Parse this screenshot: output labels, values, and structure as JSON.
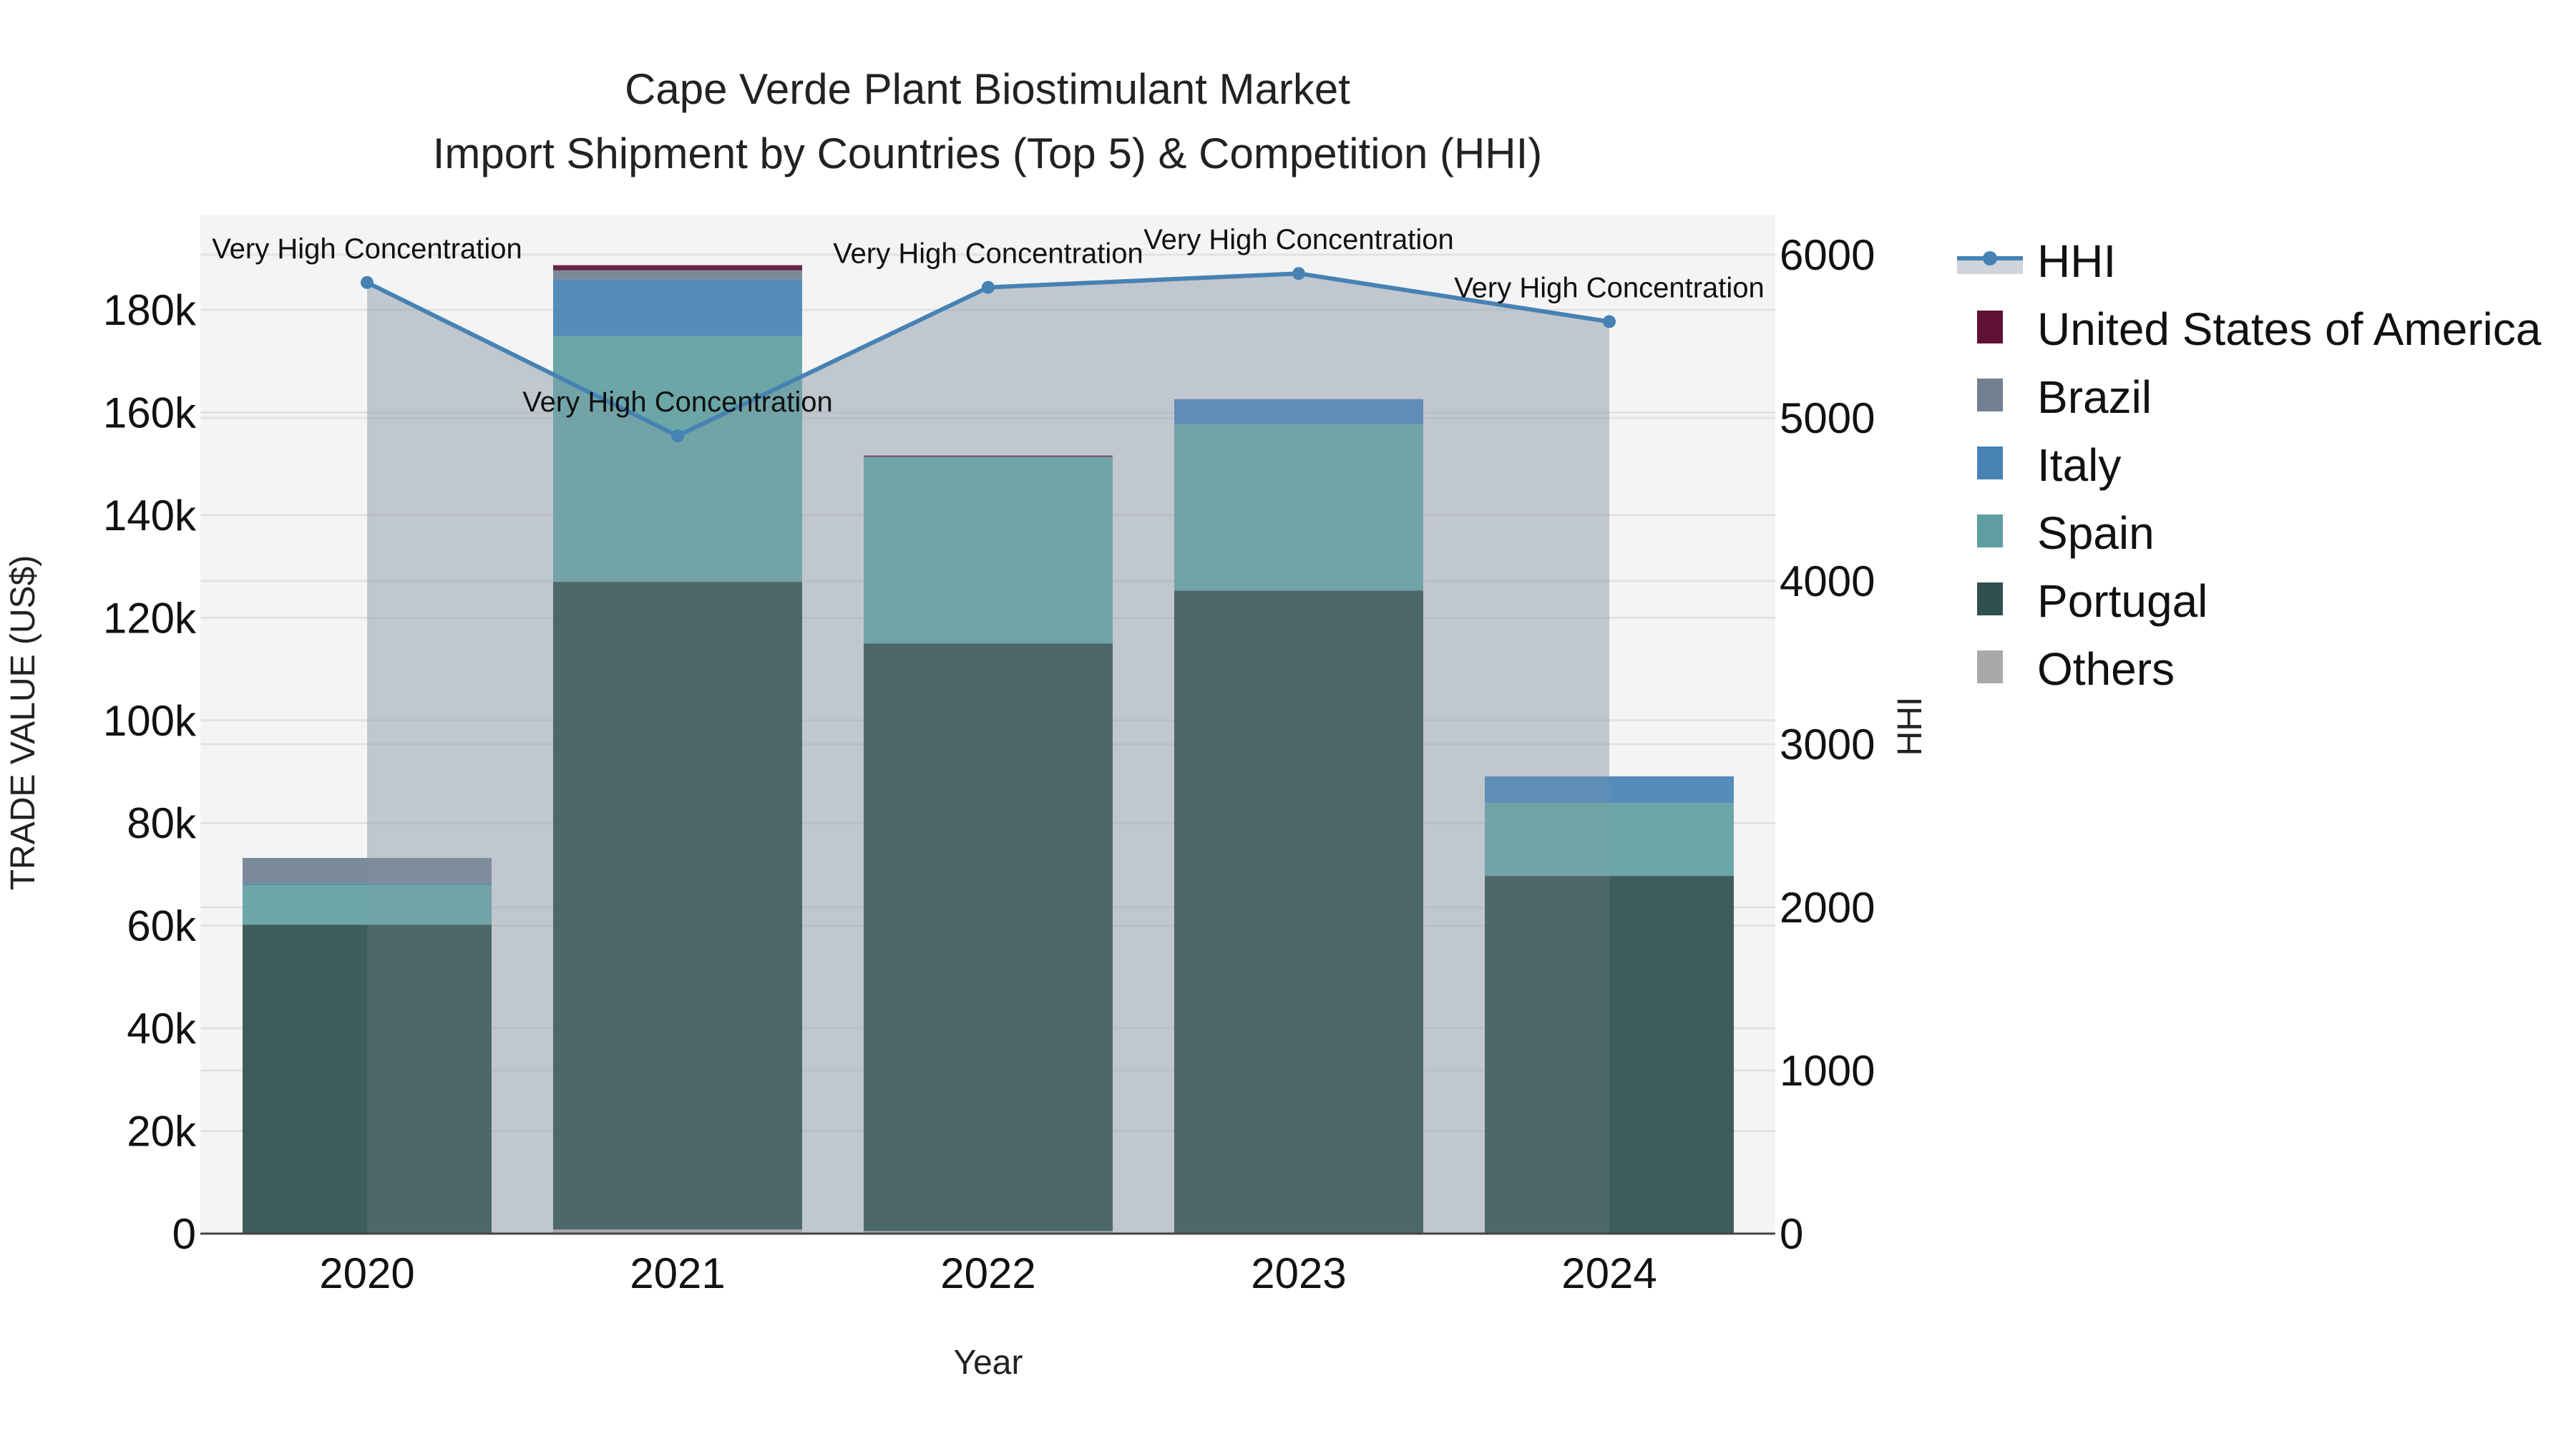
{
  "chart_data": {
    "type": "bar",
    "subtype": "stacked bar with line overlay (dual axis)",
    "title": "Cape Verde Plant Biostimulant Market",
    "subtitle": "Import Shipment by Countries (Top 5) & Competition (HHI)",
    "xlabel": "Year",
    "ylabel": "TRADE VALUE (US$)",
    "y2label": "HHI",
    "categories": [
      "2020",
      "2021",
      "2022",
      "2023",
      "2024"
    ],
    "ylim": [
      0,
      198000
    ],
    "y2lim": [
      0,
      6336
    ],
    "yticks": [
      0,
      20000,
      40000,
      60000,
      80000,
      100000,
      120000,
      140000,
      160000,
      180000
    ],
    "ytick_labels": [
      "0",
      "20k",
      "40k",
      "60k",
      "80k",
      "100k",
      "120k",
      "140k",
      "160k",
      "180k"
    ],
    "y2ticks": [
      0,
      1000,
      2000,
      3000,
      4000,
      5000,
      6000
    ],
    "y2tick_labels": [
      "0",
      "1000",
      "2000",
      "3000",
      "4000",
      "5000",
      "6000"
    ],
    "grid": true,
    "legend_position": "right",
    "series": [
      {
        "name": "Others",
        "color": "#A9A9A9",
        "values": [
          0,
          800,
          500,
          0,
          0
        ]
      },
      {
        "name": "Portugal",
        "color": "#2F4F4F",
        "values": [
          60200,
          126200,
          114500,
          125300,
          69700
        ]
      },
      {
        "name": "Spain",
        "color": "#5F9EA0",
        "values": [
          7700,
          47900,
          36300,
          32400,
          14200
        ]
      },
      {
        "name": "Italy",
        "color": "#4682B4",
        "values": [
          300,
          11000,
          0,
          4900,
          5200
        ]
      },
      {
        "name": "Brazil",
        "color": "#708090",
        "values": [
          5000,
          1800,
          100,
          0,
          0
        ]
      },
      {
        "name": "United States of America",
        "color": "#5E1035",
        "values": [
          0,
          1000,
          200,
          0,
          0
        ]
      }
    ],
    "line_series": {
      "name": "HHI",
      "axis": "y2",
      "color": "#4682B4",
      "fill_color": "rgba(119,136,153,0.35)",
      "values": [
        5830,
        4890,
        5800,
        5885,
        5590
      ],
      "annotations": [
        "Very High Concentration",
        "Very High Concentration",
        "Very High Concentration",
        "Very High Concentration",
        "Very High Concentration"
      ]
    },
    "legend": [
      "HHI",
      "United States of America",
      "Brazil",
      "Italy",
      "Spain",
      "Portugal",
      "Others"
    ]
  },
  "colors": {
    "plot_background": "#F4F4F4",
    "gridline": "#E2E2E2",
    "axis_line": "#444444"
  }
}
